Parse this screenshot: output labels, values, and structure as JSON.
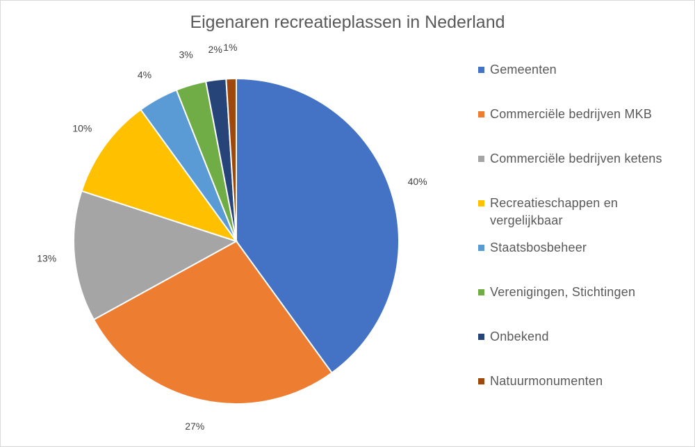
{
  "chart_data": {
    "type": "pie",
    "title": "Eigenaren recreatieplassen in Nederland",
    "categories": [
      "Gemeenten",
      "Commerciële bedrijven MKB",
      "Commerciële bedrijven ketens",
      "Recreatieschappen en vergelijkbaar",
      "Staatsbosbeheer",
      "Verenigingen, Stichtingen",
      "Onbekend",
      "Natuurmonumenten"
    ],
    "values": [
      40,
      27,
      13,
      10,
      4,
      3,
      2,
      1
    ],
    "data_labels": [
      "40%",
      "27%",
      "13%",
      "10%",
      "4%",
      "3%",
      "2%",
      "1%"
    ],
    "colors": [
      "#4472c4",
      "#ed7d31",
      "#a5a5a5",
      "#ffc000",
      "#5b9bd5",
      "#70ad47",
      "#264478",
      "#9e480e"
    ],
    "legend_position": "right"
  }
}
